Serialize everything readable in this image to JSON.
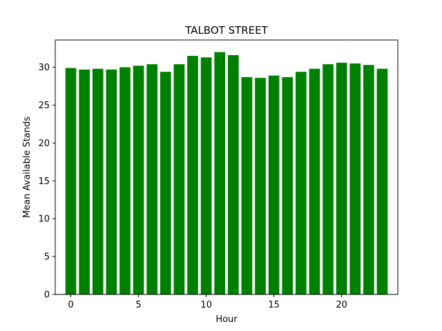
{
  "chart_data": {
    "type": "bar",
    "title": "TALBOT STREET",
    "xlabel": "Hour",
    "ylabel": "Mean Available Stands",
    "x": [
      0,
      1,
      2,
      3,
      4,
      5,
      6,
      7,
      8,
      9,
      10,
      11,
      12,
      13,
      14,
      15,
      16,
      17,
      18,
      19,
      20,
      21,
      22,
      23
    ],
    "values": [
      29.9,
      29.7,
      29.8,
      29.7,
      30.0,
      30.2,
      30.4,
      29.4,
      30.4,
      31.5,
      31.3,
      32.0,
      31.6,
      28.7,
      28.6,
      28.9,
      28.7,
      29.4,
      29.8,
      30.4,
      30.6,
      30.5,
      30.3,
      29.8
    ],
    "bar_color": "#008000",
    "xlim": [
      -1.15,
      24.15
    ],
    "ylim": [
      0,
      33.6
    ],
    "xticks": [
      0,
      5,
      10,
      15,
      20
    ],
    "yticks": [
      0,
      5,
      10,
      15,
      20,
      25,
      30
    ],
    "grid": false,
    "legend": false
  }
}
